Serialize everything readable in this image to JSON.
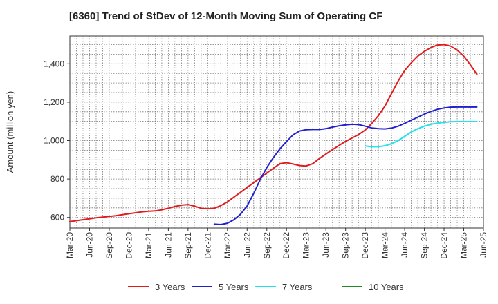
{
  "chart_data": {
    "type": "line",
    "title": "[6360]  Trend of StDev of 12-Month Moving Sum of Operating CF",
    "ylabel": "Amount (million yen)",
    "xlabel": "",
    "ylim": [
      545,
      1545
    ],
    "yticks": [
      600,
      800,
      1000,
      1200,
      1400
    ],
    "ytick_labels": [
      "600",
      "800",
      "1,000",
      "1,200",
      "1,400"
    ],
    "xlim": [
      "Mar-20",
      "Jun-25"
    ],
    "xtick_labels": [
      "Mar-20",
      "Jun-20",
      "Sep-20",
      "Dec-20",
      "Mar-21",
      "Jun-21",
      "Sep-21",
      "Dec-21",
      "Mar-22",
      "Jun-22",
      "Sep-22",
      "Dec-22",
      "Mar-23",
      "Jun-23",
      "Sep-23",
      "Dec-23",
      "Mar-24",
      "Jun-24",
      "Sep-24",
      "Dec-24",
      "Mar-25",
      "Jun-25"
    ],
    "grid": true,
    "legend_position": "bottom",
    "series": [
      {
        "name": "3 Years",
        "color": "#e31a1c",
        "points": [
          [
            "Mar-20",
            578
          ],
          [
            "Apr-20",
            583
          ],
          [
            "May-20",
            588
          ],
          [
            "Jun-20",
            593
          ],
          [
            "Jul-20",
            598
          ],
          [
            "Aug-20",
            602
          ],
          [
            "Sep-20",
            605
          ],
          [
            "Oct-20",
            609
          ],
          [
            "Nov-20",
            614
          ],
          [
            "Dec-20",
            619
          ],
          [
            "Jan-21",
            624
          ],
          [
            "Feb-21",
            629
          ],
          [
            "Mar-21",
            632
          ],
          [
            "Apr-21",
            634
          ],
          [
            "May-21",
            640
          ],
          [
            "Jun-21",
            648
          ],
          [
            "Jul-21",
            657
          ],
          [
            "Aug-21",
            664
          ],
          [
            "Sep-21",
            667
          ],
          [
            "Oct-21",
            659
          ],
          [
            "Nov-21",
            648
          ],
          [
            "Dec-21",
            645
          ],
          [
            "Jan-22",
            648
          ],
          [
            "Feb-22",
            662
          ],
          [
            "Mar-22",
            681
          ],
          [
            "Apr-22",
            706
          ],
          [
            "May-22",
            731
          ],
          [
            "Jun-22",
            756
          ],
          [
            "Jul-22",
            781
          ],
          [
            "Aug-22",
            806
          ],
          [
            "Sep-22",
            831
          ],
          [
            "Oct-22",
            856
          ],
          [
            "Nov-22",
            880
          ],
          [
            "Dec-22",
            885
          ],
          [
            "Jan-23",
            878
          ],
          [
            "Feb-23",
            870
          ],
          [
            "Mar-23",
            868
          ],
          [
            "Apr-23",
            880
          ],
          [
            "May-23",
            906
          ],
          [
            "Jun-23",
            930
          ],
          [
            "Jul-23",
            953
          ],
          [
            "Aug-23",
            975
          ],
          [
            "Sep-23",
            996
          ],
          [
            "Oct-23",
            1014
          ],
          [
            "Nov-23",
            1032
          ],
          [
            "Dec-23",
            1055
          ],
          [
            "Jan-24",
            1090
          ],
          [
            "Feb-24",
            1130
          ],
          [
            "Mar-24",
            1180
          ],
          [
            "Apr-24",
            1245
          ],
          [
            "May-24",
            1310
          ],
          [
            "Jun-24",
            1365
          ],
          [
            "Jul-24",
            1405
          ],
          [
            "Aug-24",
            1440
          ],
          [
            "Sep-24",
            1465
          ],
          [
            "Oct-24",
            1485
          ],
          [
            "Nov-24",
            1498
          ],
          [
            "Dec-24",
            1500
          ],
          [
            "Jan-25",
            1492
          ],
          [
            "Feb-25",
            1472
          ],
          [
            "Mar-25",
            1440
          ],
          [
            "Apr-25",
            1395
          ],
          [
            "May-25",
            1345
          ]
        ]
      },
      {
        "name": "5 Years",
        "color": "#1f1fd0",
        "points": [
          [
            "Jan-22",
            565
          ],
          [
            "Feb-22",
            563
          ],
          [
            "Mar-22",
            570
          ],
          [
            "Apr-22",
            588
          ],
          [
            "May-22",
            617
          ],
          [
            "Jun-22",
            660
          ],
          [
            "Jul-22",
            725
          ],
          [
            "Aug-22",
            798
          ],
          [
            "Sep-22",
            860
          ],
          [
            "Oct-22",
            912
          ],
          [
            "Nov-22",
            957
          ],
          [
            "Dec-22",
            995
          ],
          [
            "Jan-23",
            1030
          ],
          [
            "Feb-23",
            1050
          ],
          [
            "Mar-23",
            1057
          ],
          [
            "Apr-23",
            1058
          ],
          [
            "May-23",
            1058
          ],
          [
            "Jun-23",
            1062
          ],
          [
            "Jul-23",
            1070
          ],
          [
            "Aug-23",
            1077
          ],
          [
            "Sep-23",
            1082
          ],
          [
            "Oct-23",
            1085
          ],
          [
            "Nov-23",
            1083
          ],
          [
            "Dec-23",
            1075
          ],
          [
            "Jan-24",
            1066
          ],
          [
            "Feb-24",
            1062
          ],
          [
            "Mar-24",
            1061
          ],
          [
            "Apr-24",
            1065
          ],
          [
            "May-24",
            1075
          ],
          [
            "Jun-24",
            1090
          ],
          [
            "Jul-24",
            1106
          ],
          [
            "Aug-24",
            1122
          ],
          [
            "Sep-24",
            1138
          ],
          [
            "Oct-24",
            1152
          ],
          [
            "Nov-24",
            1163
          ],
          [
            "Dec-24",
            1170
          ],
          [
            "Jan-25",
            1174
          ],
          [
            "Feb-25",
            1175
          ],
          [
            "Mar-25",
            1175
          ],
          [
            "Apr-25",
            1175
          ],
          [
            "May-25",
            1175
          ]
        ]
      },
      {
        "name": "7 Years",
        "color": "#22e0ee",
        "points": [
          [
            "Dec-23",
            972
          ],
          [
            "Jan-24",
            968
          ],
          [
            "Feb-24",
            968
          ],
          [
            "Mar-24",
            973
          ],
          [
            "Apr-24",
            984
          ],
          [
            "May-24",
            1000
          ],
          [
            "Jun-24",
            1022
          ],
          [
            "Jul-24",
            1045
          ],
          [
            "Aug-24",
            1062
          ],
          [
            "Sep-24",
            1075
          ],
          [
            "Oct-24",
            1085
          ],
          [
            "Nov-24",
            1091
          ],
          [
            "Dec-24",
            1095
          ],
          [
            "Jan-25",
            1098
          ],
          [
            "Feb-25",
            1099
          ],
          [
            "Mar-25",
            1099
          ],
          [
            "Apr-25",
            1099
          ],
          [
            "May-25",
            1099
          ]
        ]
      },
      {
        "name": "10 Years",
        "color": "#228b22",
        "points": []
      }
    ]
  }
}
